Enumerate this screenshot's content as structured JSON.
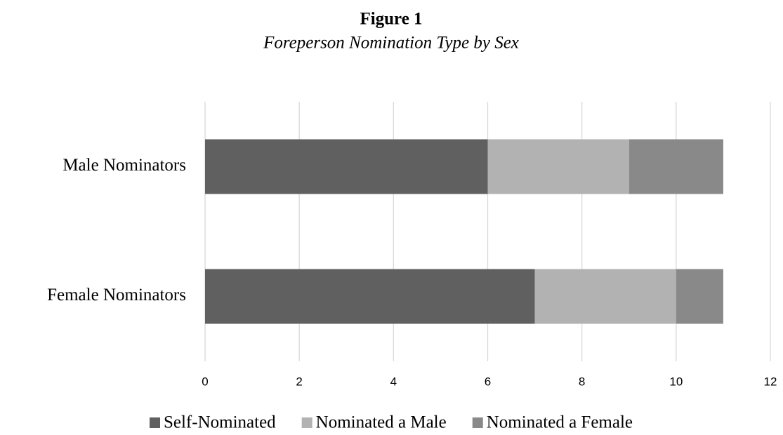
{
  "chart_data": {
    "type": "bar",
    "orientation": "horizontal",
    "stacked": true,
    "title": "Figure 1",
    "subtitle": "Foreperson Nomination Type by Sex",
    "categories": [
      "Male Nominators",
      "Female Nominators"
    ],
    "series": [
      {
        "name": "Self-Nominated",
        "color": "#606060",
        "values": [
          6,
          7
        ]
      },
      {
        "name": "Nominated a Male",
        "color": "#b2b2b2",
        "values": [
          3,
          3
        ]
      },
      {
        "name": "Nominated a Female",
        "color": "#898989",
        "values": [
          2,
          1
        ]
      }
    ],
    "xlim": [
      0,
      12
    ],
    "xticks": [
      0,
      2,
      4,
      6,
      8,
      10,
      12
    ],
    "grid": true,
    "legend": "bottom"
  }
}
